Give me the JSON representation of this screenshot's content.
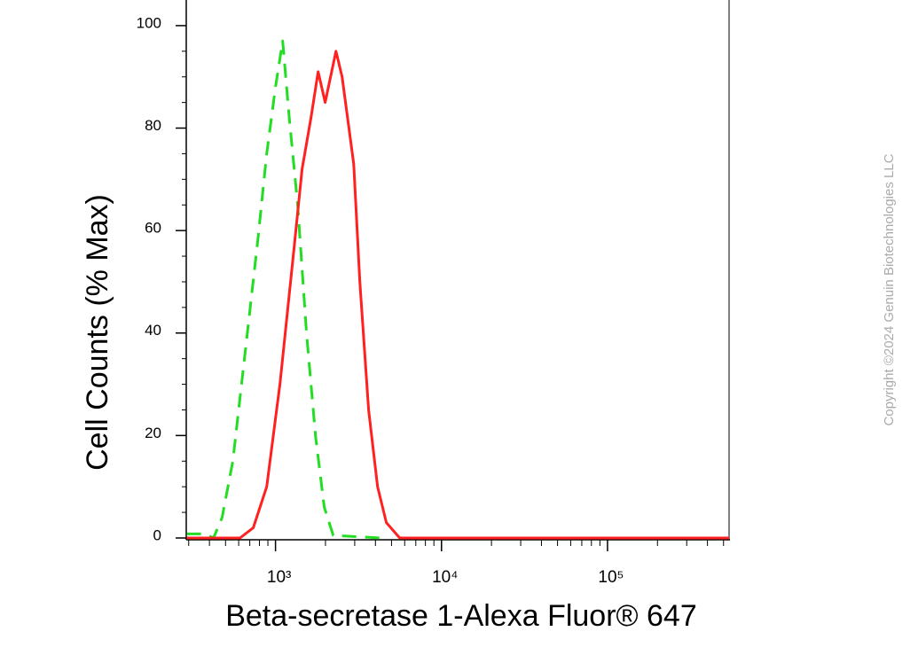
{
  "chart_data": {
    "type": "line",
    "xlabel": "Beta-secretase 1-Alexa Fluor® 647",
    "ylabel": "Cell Counts (% Max)",
    "annotation": "Copyright ©2024 Genuin Biotechnologies LLC",
    "xscale": "log",
    "xlim": [
      290,
      540000
    ],
    "ylim": [
      0,
      105
    ],
    "xticks": [
      {
        "value": 1000,
        "label": "10³"
      },
      {
        "value": 10000,
        "label": "10⁴"
      },
      {
        "value": 100000,
        "label": "10⁵"
      }
    ],
    "xminorticks": [
      300,
      400,
      500,
      600,
      700,
      800,
      900,
      2000,
      3000,
      4000,
      5000,
      6000,
      7000,
      8000,
      9000,
      20000,
      30000,
      40000,
      50000,
      60000,
      70000,
      80000,
      90000,
      200000,
      300000,
      400000,
      500000
    ],
    "yticks": [
      0,
      20,
      40,
      60,
      80,
      100
    ],
    "yminorticks": [
      5,
      10,
      15,
      25,
      30,
      35,
      45,
      50,
      55,
      65,
      70,
      75,
      85,
      90,
      95
    ],
    "series": [
      {
        "color": "#22dd22",
        "dash": true,
        "x": [
          292,
          373,
          423,
          477,
          553,
          650,
          782,
          885,
          1000,
          1104,
          1203,
          1360,
          1538,
          1741,
          1968,
          2228,
          4385
        ],
        "values": [
          0.8,
          0.8,
          0,
          4,
          15,
          35,
          58,
          75,
          88,
          97,
          83,
          65,
          40,
          20,
          6,
          0.5,
          0
        ]
      },
      {
        "color": "#ff2020",
        "dash": false,
        "x": [
          292,
          611,
          735,
          885,
          1063,
          1279,
          1446,
          1636,
          1806,
          1992,
          2146,
          2313,
          2519,
          2958,
          3222,
          3640,
          4119,
          4656,
          5606,
          540000
        ],
        "values": [
          0,
          0,
          2,
          10,
          30,
          55,
          72,
          82,
          91,
          85,
          90,
          95,
          90,
          73,
          50,
          25,
          10,
          3,
          0,
          0
        ]
      }
    ]
  }
}
